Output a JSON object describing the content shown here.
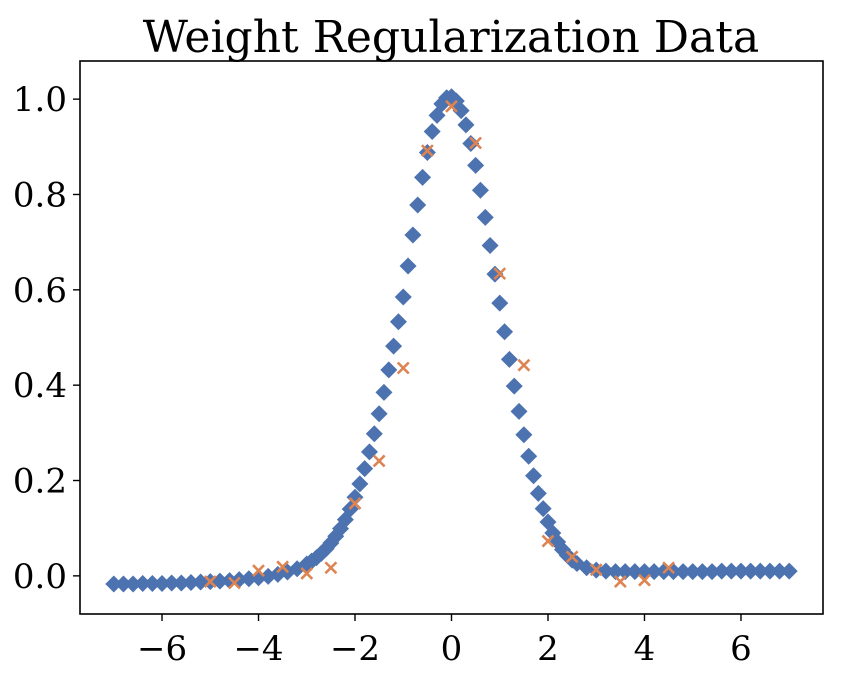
{
  "chart_data": {
    "type": "scatter",
    "title": "Weight Regularization Data",
    "xlabel": "",
    "ylabel": "",
    "xlim": [
      -7.7,
      7.7
    ],
    "ylim": [
      -0.08,
      1.08
    ],
    "xticks": [
      -6,
      -4,
      -2,
      0,
      2,
      4,
      6
    ],
    "xtick_labels": [
      "−6",
      "−4",
      "−2",
      "0",
      "2",
      "4",
      "6"
    ],
    "yticks": [
      0.0,
      0.2,
      0.4,
      0.6,
      0.8,
      1.0
    ],
    "ytick_labels": [
      "0.0",
      "0.2",
      "0.4",
      "0.6",
      "0.8",
      "1.0"
    ],
    "grid": false,
    "legend": "none",
    "series": [
      {
        "marker": "diamond",
        "color": "#4c72b0",
        "x": [
          -7.0,
          -6.8,
          -6.6,
          -6.4,
          -6.2,
          -6.0,
          -5.8,
          -5.6,
          -5.4,
          -5.2,
          -5.0,
          -4.8,
          -4.6,
          -4.4,
          -4.2,
          -4.0,
          -3.8,
          -3.6,
          -3.4,
          -3.2,
          -3.0,
          -2.9,
          -2.8,
          -2.7,
          -2.6,
          -2.5,
          -2.4,
          -2.3,
          -2.2,
          -2.1,
          -2.0,
          -1.9,
          -1.8,
          -1.7,
          -1.6,
          -1.5,
          -1.4,
          -1.3,
          -1.2,
          -1.1,
          -1.0,
          -0.9,
          -0.8,
          -0.7,
          -0.6,
          -0.5,
          -0.4,
          -0.3,
          -0.2,
          -0.1,
          0.0,
          0.1,
          0.2,
          0.3,
          0.4,
          0.5,
          0.6,
          0.7,
          0.8,
          0.9,
          1.0,
          1.1,
          1.2,
          1.3,
          1.4,
          1.5,
          1.6,
          1.7,
          1.8,
          1.9,
          2.0,
          2.1,
          2.2,
          2.3,
          2.4,
          2.5,
          2.6,
          2.8,
          3.0,
          3.2,
          3.4,
          3.6,
          3.8,
          4.0,
          4.2,
          4.4,
          4.6,
          4.8,
          5.0,
          5.2,
          5.4,
          5.6,
          5.8,
          6.0,
          6.2,
          6.4,
          6.6,
          6.8,
          7.0
        ],
        "y": [
          -0.017,
          -0.017,
          -0.017,
          -0.016,
          -0.016,
          -0.016,
          -0.015,
          -0.015,
          -0.014,
          -0.013,
          -0.012,
          -0.011,
          -0.01,
          -0.008,
          -0.006,
          -0.004,
          -0.001,
          0.003,
          0.008,
          0.015,
          0.025,
          0.031,
          0.038,
          0.047,
          0.057,
          0.069,
          0.083,
          0.099,
          0.118,
          0.14,
          0.165,
          0.193,
          0.225,
          0.26,
          0.298,
          0.34,
          0.385,
          0.432,
          0.482,
          0.533,
          0.585,
          0.65,
          0.715,
          0.778,
          0.836,
          0.888,
          0.932,
          0.966,
          0.99,
          1.003,
          1.005,
          0.996,
          0.976,
          0.946,
          0.907,
          0.861,
          0.809,
          0.752,
          0.693,
          0.633,
          0.572,
          0.512,
          0.454,
          0.398,
          0.345,
          0.296,
          0.251,
          0.21,
          0.173,
          0.141,
          0.113,
          0.09,
          0.071,
          0.055,
          0.043,
          0.033,
          0.026,
          0.017,
          0.012,
          0.01,
          0.009,
          0.009,
          0.009,
          0.009,
          0.009,
          0.009,
          0.009,
          0.009,
          0.009,
          0.009,
          0.009,
          0.01,
          0.01,
          0.01,
          0.01,
          0.01,
          0.01,
          0.01,
          0.01
        ]
      },
      {
        "marker": "x",
        "color": "#dd8452",
        "x": [
          -5.0,
          -4.5,
          -4.0,
          -3.5,
          -3.0,
          -2.5,
          -2.0,
          -1.5,
          -1.0,
          -0.5,
          0.0,
          0.5,
          1.0,
          1.5,
          2.0,
          2.5,
          3.0,
          3.5,
          4.0,
          4.5
        ],
        "y": [
          -0.012,
          -0.015,
          0.011,
          0.019,
          0.005,
          0.017,
          0.152,
          0.241,
          0.436,
          0.892,
          0.985,
          0.908,
          0.634,
          0.442,
          0.073,
          0.04,
          0.013,
          -0.012,
          -0.009,
          0.017
        ]
      }
    ]
  }
}
